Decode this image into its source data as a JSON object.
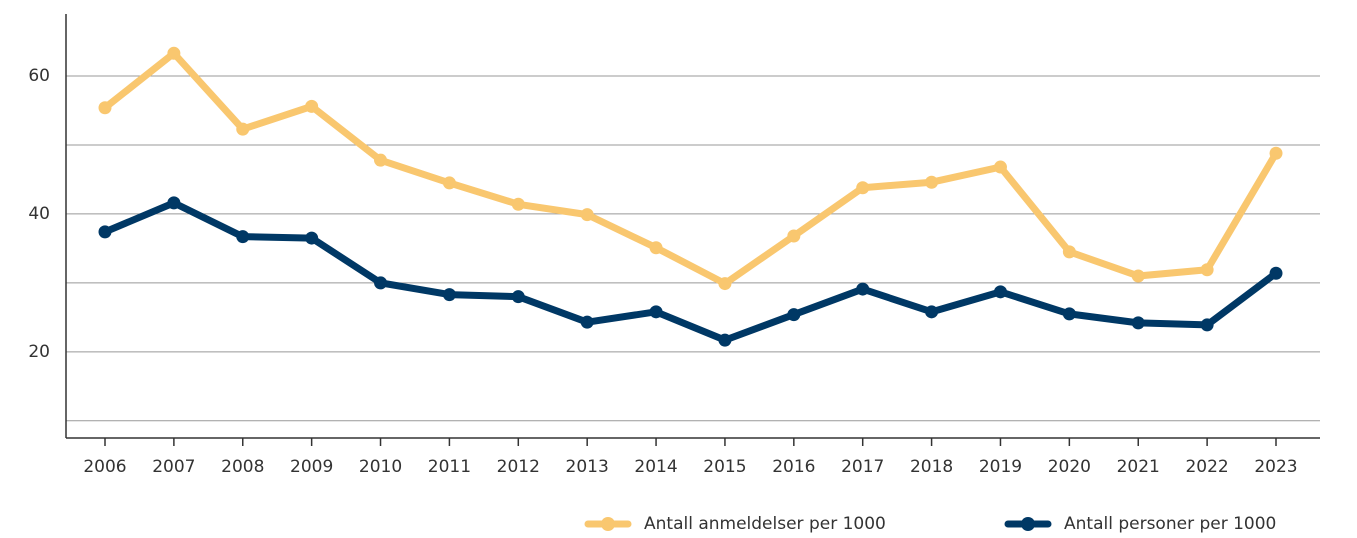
{
  "chart_data": {
    "type": "line",
    "categories": [
      "2006",
      "2007",
      "2008",
      "2009",
      "2010",
      "2011",
      "2012",
      "2013",
      "2014",
      "2015",
      "2016",
      "2017",
      "2018",
      "2019",
      "2020",
      "2021",
      "2022",
      "2023"
    ],
    "series": [
      {
        "name": "Antall anmeldelser per 1000",
        "color": "#f9c76f",
        "values": [
          55.4,
          63.3,
          52.3,
          55.6,
          47.8,
          44.5,
          41.4,
          39.9,
          35.1,
          29.9,
          36.8,
          43.8,
          44.6,
          46.8,
          34.5,
          31.0,
          31.9,
          48.8
        ]
      },
      {
        "name": "Antall personer per 1000",
        "color": "#003865",
        "values": [
          37.4,
          41.6,
          36.7,
          36.5,
          30.0,
          28.3,
          28.0,
          24.3,
          25.8,
          21.7,
          25.4,
          29.1,
          25.8,
          28.7,
          25.5,
          24.2,
          23.9,
          31.4
        ]
      }
    ],
    "ylim": [
      7.5,
      69
    ],
    "yticks": [
      20,
      40,
      60
    ],
    "grid_lines": [
      10,
      20,
      30,
      40,
      50,
      60
    ],
    "grid": true,
    "legend": "bottom-right"
  }
}
